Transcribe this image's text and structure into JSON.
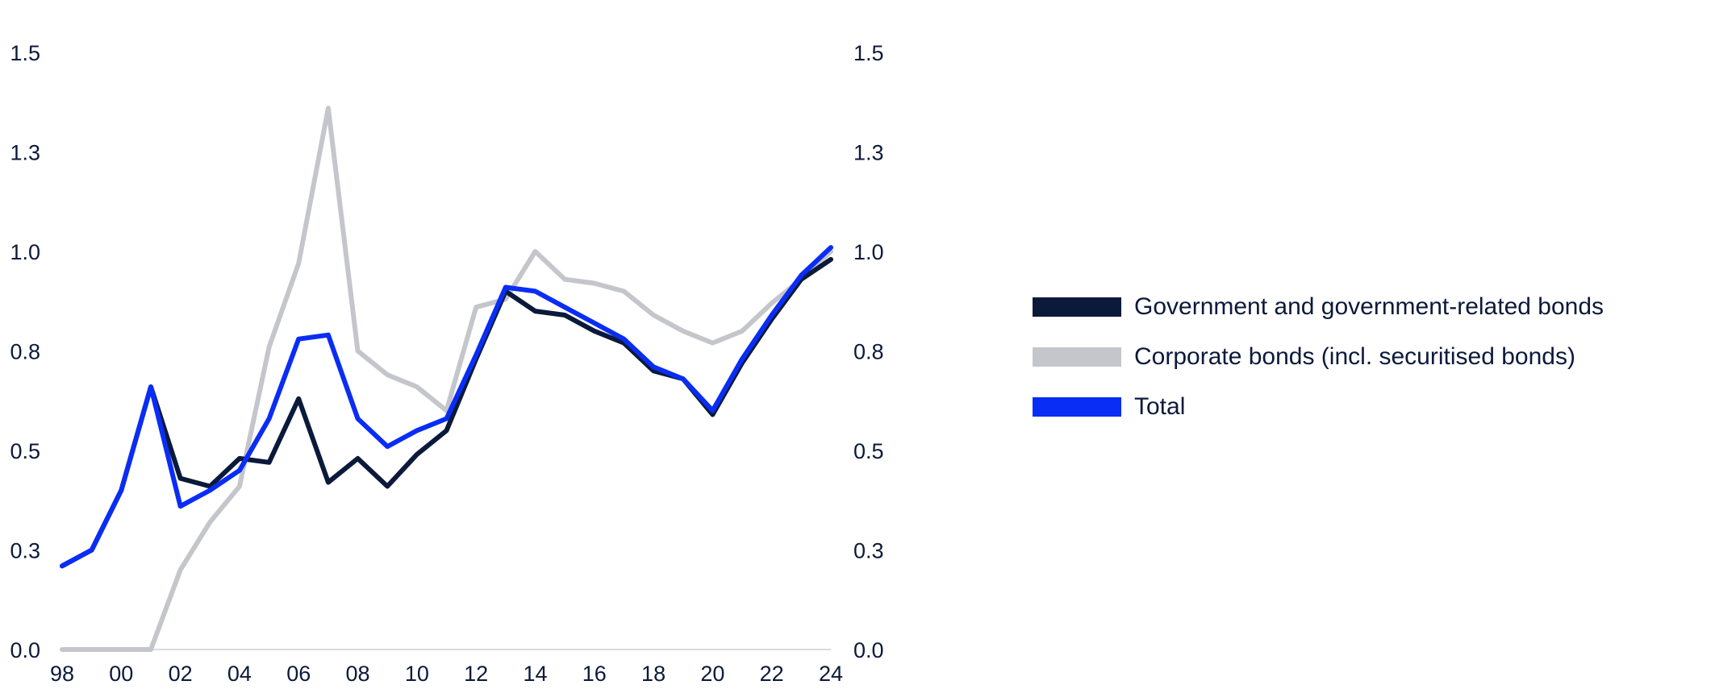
{
  "chart_data": {
    "type": "line",
    "title": "",
    "xlabel": "",
    "ylabel": "",
    "x": [
      1998,
      1999,
      2000,
      2001,
      2002,
      2003,
      2004,
      2005,
      2006,
      2007,
      2008,
      2009,
      2010,
      2011,
      2012,
      2013,
      2014,
      2015,
      2016,
      2017,
      2018,
      2019,
      2020,
      2021,
      2022,
      2023,
      2024
    ],
    "x_tick_labels": [
      "98",
      "00",
      "02",
      "04",
      "06",
      "08",
      "10",
      "12",
      "14",
      "16",
      "18",
      "20",
      "22",
      "24"
    ],
    "y_tick_labels": [
      "0.0",
      "0.3",
      "0.5",
      "0.8",
      "1.0",
      "1.3",
      "1.5"
    ],
    "ylim": [
      0,
      1.5
    ],
    "series": [
      {
        "name": "Corporate bonds (incl. securitised bonds)",
        "color": "#c4c6cc",
        "values": [
          0.0,
          0.0,
          0.0,
          0.0,
          0.2,
          0.32,
          0.41,
          0.76,
          0.97,
          1.36,
          0.75,
          0.69,
          0.66,
          0.6,
          0.86,
          0.88,
          1.0,
          0.93,
          0.92,
          0.9,
          0.84,
          0.8,
          0.77,
          0.8,
          0.87,
          0.93,
          1.0
        ]
      },
      {
        "name": "Government and government-related bonds",
        "color": "#0b1a3a",
        "values": [
          0.21,
          0.25,
          0.4,
          0.66,
          0.43,
          0.41,
          0.48,
          0.47,
          0.63,
          0.42,
          0.48,
          0.41,
          0.49,
          0.55,
          0.73,
          0.9,
          0.85,
          0.84,
          0.8,
          0.77,
          0.7,
          0.68,
          0.59,
          0.72,
          0.83,
          0.93,
          0.98
        ]
      },
      {
        "name": "Total",
        "color": "#0a2df5",
        "values": [
          0.21,
          0.25,
          0.4,
          0.66,
          0.36,
          0.4,
          0.45,
          0.58,
          0.78,
          0.79,
          0.58,
          0.51,
          0.55,
          0.58,
          0.74,
          0.91,
          0.9,
          0.86,
          0.82,
          0.78,
          0.71,
          0.68,
          0.6,
          0.73,
          0.84,
          0.94,
          1.01
        ]
      }
    ],
    "legend": [
      {
        "label": "Government and government-related bonds",
        "color": "#0b1a3a"
      },
      {
        "label": "Corporate bonds (incl. securitised bonds)",
        "color": "#c4c6cc"
      },
      {
        "label": "Total",
        "color": "#0a2df5"
      }
    ],
    "legend_position": "right",
    "grid": false
  }
}
